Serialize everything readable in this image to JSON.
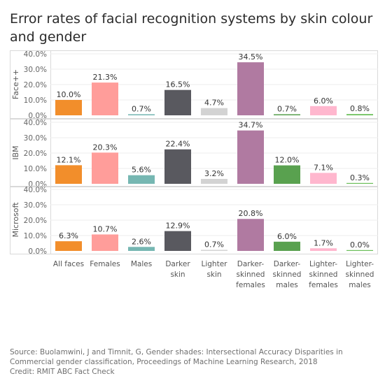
{
  "title": "Error rates of facial recognition systems by skin colour and gender",
  "footer": {
    "source": "Source: Buolamwini, J and Timnit, G, Gender shades: Intersectional Accuracy Disparities in Commercial gender classification, Proceedings of Machine Learning Research, 2018",
    "credit": "Credit: RMIT ABC Fact Check"
  },
  "chart_data": {
    "type": "bar",
    "categories": [
      [
        "All faces"
      ],
      [
        "Females"
      ],
      [
        "Males"
      ],
      [
        "Darker",
        "skin"
      ],
      [
        "Lighter",
        "skin"
      ],
      [
        "Darker-",
        "skinned",
        "females"
      ],
      [
        "Darker-",
        "skinned",
        "males"
      ],
      [
        "Lighter-",
        "skinned",
        "females"
      ],
      [
        "Lighter-",
        "skinned",
        "males"
      ]
    ],
    "colors": [
      "#F28E2B",
      "#FF9D9A",
      "#76B7B2",
      "#59595F",
      "#D3D3D3",
      "#B07AA1",
      "#59A14F",
      "#FFB7CE",
      "#6BBF59"
    ],
    "ylim": [
      0,
      40
    ],
    "yticks": [
      "0.0%",
      "10.0%",
      "20.0%",
      "30.0%",
      "40.0%"
    ],
    "grid": true,
    "panels": [
      {
        "name": "Face++",
        "values": [
          10.0,
          21.3,
          0.7,
          16.5,
          4.7,
          34.5,
          0.7,
          6.0,
          0.8
        ],
        "labels": [
          "10.0%",
          "21.3%",
          "0.7%",
          "16.5%",
          "4.7%",
          "34.5%",
          "0.7%",
          "6.0%",
          "0.8%"
        ]
      },
      {
        "name": "IBM",
        "values": [
          12.1,
          20.3,
          5.6,
          22.4,
          3.2,
          34.7,
          12.0,
          7.1,
          0.3
        ],
        "labels": [
          "12.1%",
          "20.3%",
          "5.6%",
          "22.4%",
          "3.2%",
          "34.7%",
          "12.0%",
          "7.1%",
          "0.3%"
        ]
      },
      {
        "name": "Microsoft",
        "values": [
          6.3,
          10.7,
          2.6,
          12.9,
          0.7,
          20.8,
          6.0,
          1.7,
          0.0
        ],
        "labels": [
          "6.3%",
          "10.7%",
          "2.6%",
          "12.9%",
          "0.7%",
          "20.8%",
          "6.0%",
          "1.7%",
          "0.0%"
        ]
      }
    ]
  }
}
